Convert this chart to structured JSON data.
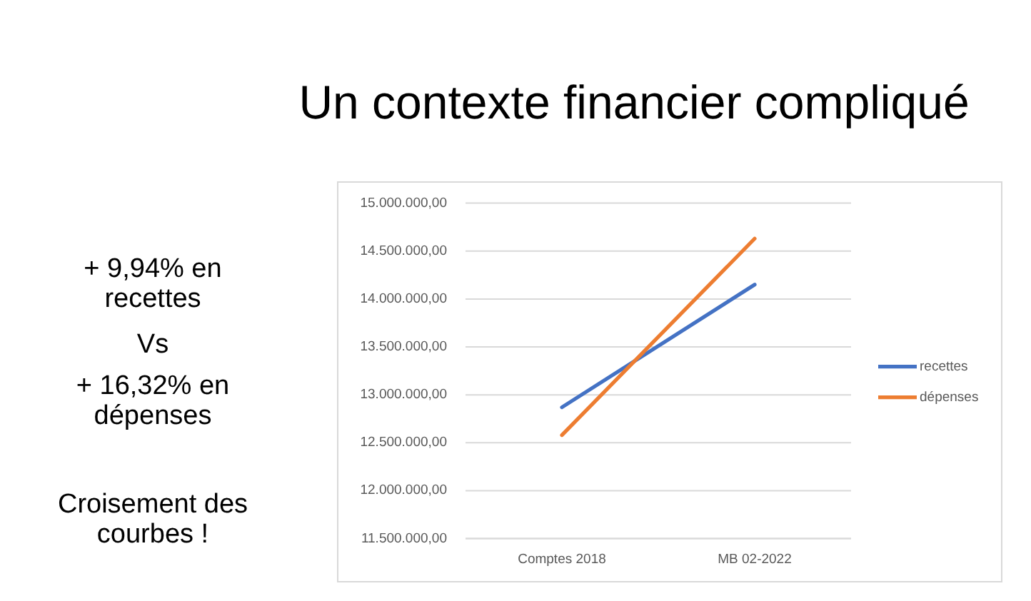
{
  "chart_data": {
    "type": "line",
    "title": "Un contexte financier compliqué",
    "annotations": [
      "+ 9,94% en recettes",
      "Vs",
      "+ 16,32% en dépenses",
      "Croisement des courbes !"
    ],
    "categories": [
      "Comptes 2018",
      "MB 02-2022"
    ],
    "series": [
      {
        "name": "recettes",
        "color": "#4472c4",
        "values": [
          12870000,
          14150000
        ]
      },
      {
        "name": "dépenses",
        "color": "#ed7d31",
        "values": [
          12580000,
          14630000
        ]
      }
    ],
    "ylim": [
      11500000,
      15000000
    ],
    "yticks": [
      {
        "value": 11500000,
        "label": "11.500.000,00"
      },
      {
        "value": 12000000,
        "label": "12.000.000,00"
      },
      {
        "value": 12500000,
        "label": "12.500.000,00"
      },
      {
        "value": 13000000,
        "label": "13.000.000,00"
      },
      {
        "value": 13500000,
        "label": "13.500.000,00"
      },
      {
        "value": 14000000,
        "label": "14.000.000,00"
      },
      {
        "value": 14500000,
        "label": "14.500.000,00"
      },
      {
        "value": 15000000,
        "label": "15.000.000,00"
      }
    ],
    "grid": "y",
    "legend": "right",
    "line_style": "solid"
  }
}
